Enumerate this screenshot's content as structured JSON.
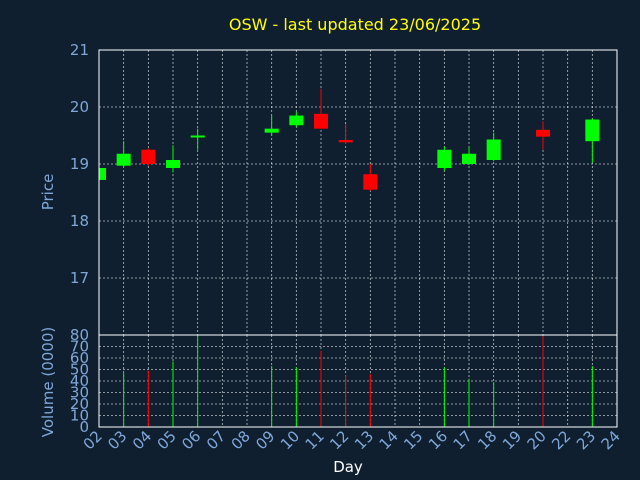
{
  "colors": {
    "background": "#0f1f30",
    "frame": "#ffffff",
    "grid": "#ffffff",
    "up": "#00ff00",
    "down": "#ff0000",
    "title": "#ffff00",
    "tick": "#7fa7d8"
  },
  "chart_data": {
    "type": "candlestick",
    "title": "OSW - last updated 23/06/2025",
    "xlabel": "Day",
    "ylabel_price": "Price",
    "ylabel_volume": "Volume (0000)",
    "x_ticks": [
      "02",
      "03",
      "04",
      "05",
      "06",
      "07",
      "08",
      "09",
      "10",
      "11",
      "12",
      "13",
      "14",
      "15",
      "16",
      "17",
      "18",
      "19",
      "20",
      "22",
      "23",
      "24"
    ],
    "price_ylim": [
      16,
      21
    ],
    "price_ticks": [
      17,
      18,
      19,
      20,
      21
    ],
    "volume_ylim": [
      0,
      80
    ],
    "volume_ticks": [
      0,
      10,
      20,
      30,
      40,
      50,
      60,
      70,
      80
    ],
    "grid": true,
    "candles": [
      {
        "day": "02",
        "open": 18.72,
        "close": 18.93,
        "high": 18.95,
        "low": 18.7,
        "volume": 0
      },
      {
        "day": "03",
        "open": 18.97,
        "close": 19.18,
        "high": 19.4,
        "low": 18.95,
        "volume": 47
      },
      {
        "day": "04",
        "open": 19.25,
        "close": 19.0,
        "high": 19.27,
        "low": 18.97,
        "volume": 49
      },
      {
        "day": "05",
        "open": 18.93,
        "close": 19.07,
        "high": 19.33,
        "low": 18.85,
        "volume": 57
      },
      {
        "day": "06",
        "open": 19.48,
        "close": 19.5,
        "high": 19.62,
        "low": 19.25,
        "volume": 80
      },
      {
        "day": "09",
        "open": 19.55,
        "close": 19.62,
        "high": 19.85,
        "low": 19.5,
        "volume": 53
      },
      {
        "day": "10",
        "open": 19.68,
        "close": 19.85,
        "high": 19.92,
        "low": 19.65,
        "volume": 52
      },
      {
        "day": "11",
        "open": 19.88,
        "close": 19.62,
        "high": 20.32,
        "low": 19.62,
        "volume": 66
      },
      {
        "day": "12",
        "open": 19.42,
        "close": 19.38,
        "high": 19.7,
        "low": 19.35,
        "volume": 45
      },
      {
        "day": "13",
        "open": 18.82,
        "close": 18.55,
        "high": 19.0,
        "low": 18.53,
        "volume": 46
      },
      {
        "day": "16",
        "open": 18.93,
        "close": 19.25,
        "high": 19.3,
        "low": 18.88,
        "volume": 52
      },
      {
        "day": "17",
        "open": 19.0,
        "close": 19.18,
        "high": 19.3,
        "low": 18.98,
        "volume": 42
      },
      {
        "day": "18",
        "open": 19.07,
        "close": 19.43,
        "high": 19.55,
        "low": 19.05,
        "volume": 39
      },
      {
        "day": "20",
        "open": 19.6,
        "close": 19.48,
        "high": 19.75,
        "low": 19.25,
        "volume": 79
      },
      {
        "day": "23",
        "open": 19.4,
        "close": 19.78,
        "high": 19.8,
        "low": 19.02,
        "volume": 53
      }
    ]
  }
}
